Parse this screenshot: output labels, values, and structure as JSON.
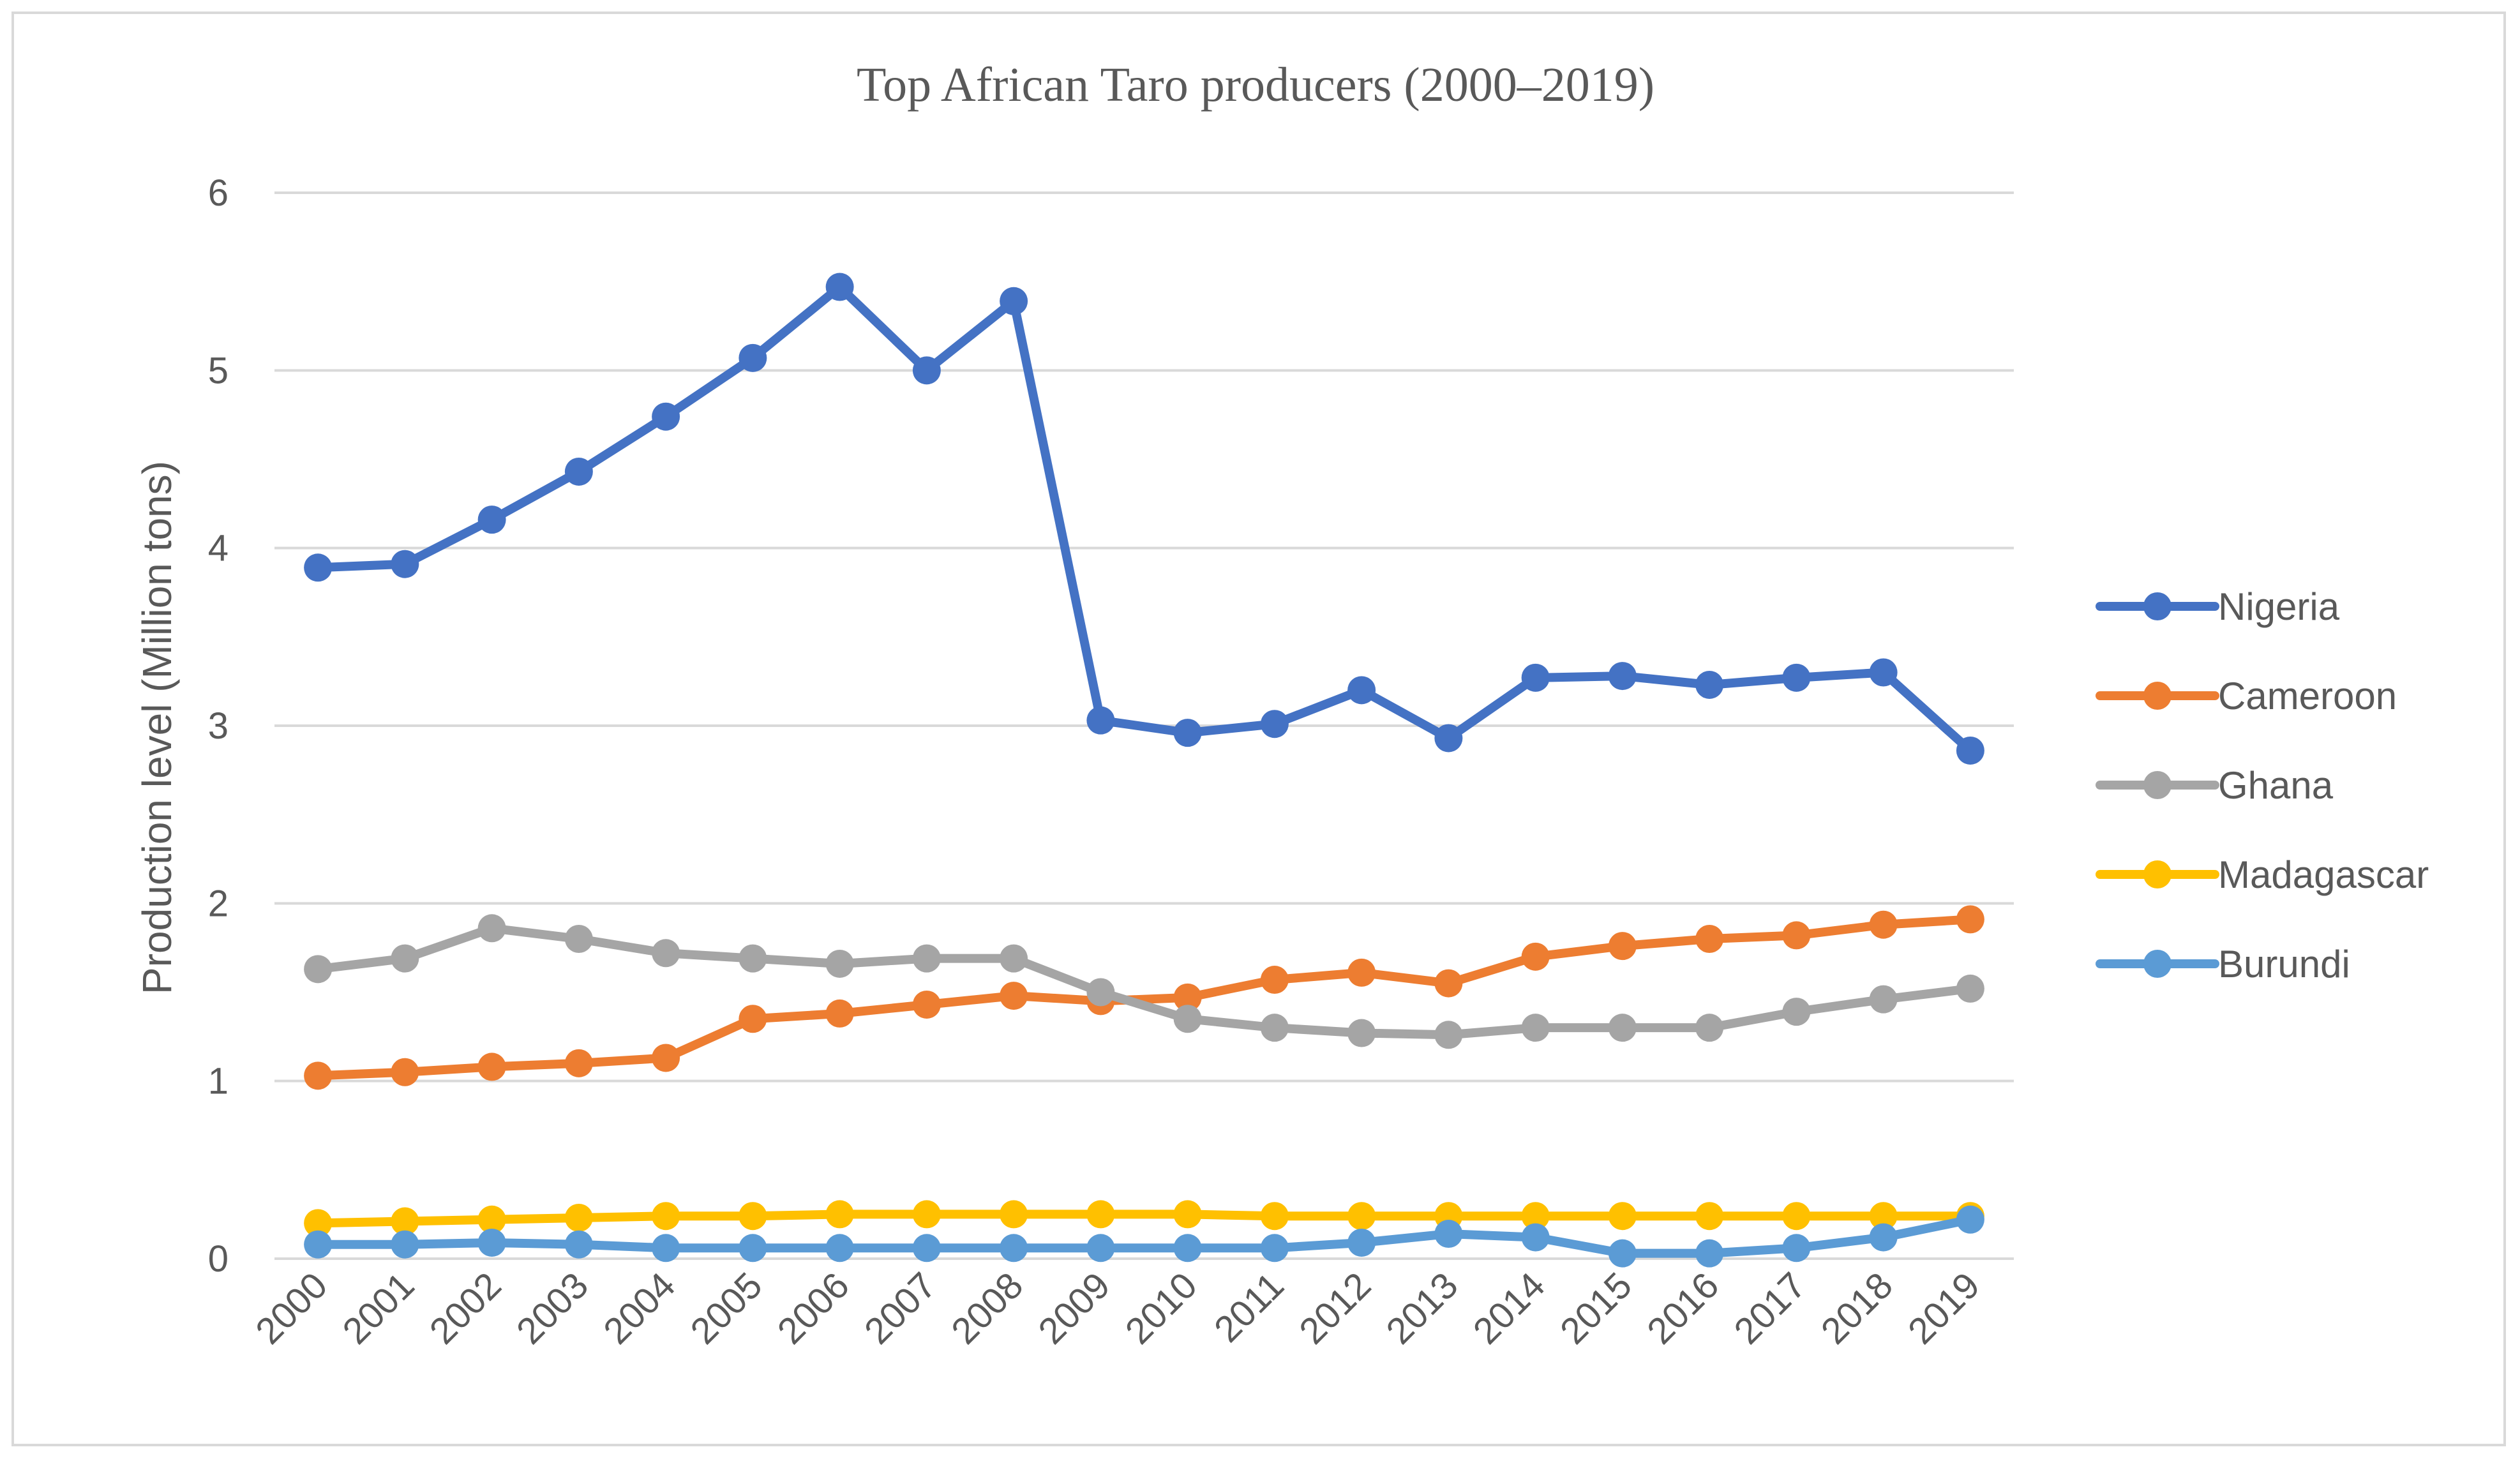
{
  "chart_data": {
    "type": "line",
    "title": "Top African Taro producers (2000–2019)",
    "xlabel": "",
    "ylabel": "Production level (Million tons)",
    "ylim": [
      0,
      6
    ],
    "yticks": [
      0,
      1,
      2,
      3,
      4,
      5,
      6
    ],
    "grid": true,
    "legend_position": "right",
    "categories": [
      "2000",
      "2001",
      "2002",
      "2003",
      "2004",
      "2005",
      "2006",
      "2007",
      "2008",
      "2009",
      "2010",
      "2011",
      "2012",
      "2013",
      "2014",
      "2015",
      "2016",
      "2017",
      "2018",
      "2019"
    ],
    "series": [
      {
        "name": "Nigeria",
        "color": "#4472c4",
        "values": [
          3.89,
          3.91,
          4.16,
          4.43,
          4.74,
          5.07,
          5.47,
          5.0,
          5.39,
          3.03,
          2.96,
          3.01,
          3.2,
          2.93,
          3.27,
          3.28,
          3.23,
          3.27,
          3.3,
          2.86
        ]
      },
      {
        "name": "Cameroon",
        "color": "#ed7d31",
        "values": [
          1.03,
          1.05,
          1.08,
          1.1,
          1.13,
          1.35,
          1.38,
          1.43,
          1.48,
          1.45,
          1.47,
          1.57,
          1.61,
          1.55,
          1.7,
          1.76,
          1.8,
          1.82,
          1.88,
          1.91
        ]
      },
      {
        "name": "Ghana",
        "color": "#a5a5a5",
        "values": [
          1.63,
          1.69,
          1.86,
          1.8,
          1.72,
          1.69,
          1.66,
          1.69,
          1.69,
          1.5,
          1.35,
          1.3,
          1.27,
          1.26,
          1.3,
          1.3,
          1.3,
          1.39,
          1.46,
          1.52
        ]
      },
      {
        "name": "Madagascar",
        "color": "#ffc000",
        "values": [
          0.2,
          0.21,
          0.22,
          0.23,
          0.24,
          0.24,
          0.25,
          0.25,
          0.25,
          0.25,
          0.25,
          0.24,
          0.24,
          0.24,
          0.24,
          0.24,
          0.24,
          0.24,
          0.24,
          0.24
        ]
      },
      {
        "name": "Burundi",
        "color": "#5b9bd5",
        "values": [
          0.08,
          0.08,
          0.09,
          0.08,
          0.06,
          0.06,
          0.06,
          0.06,
          0.06,
          0.06,
          0.06,
          0.06,
          0.09,
          0.14,
          0.12,
          0.03,
          0.03,
          0.06,
          0.12,
          0.22
        ]
      }
    ]
  }
}
